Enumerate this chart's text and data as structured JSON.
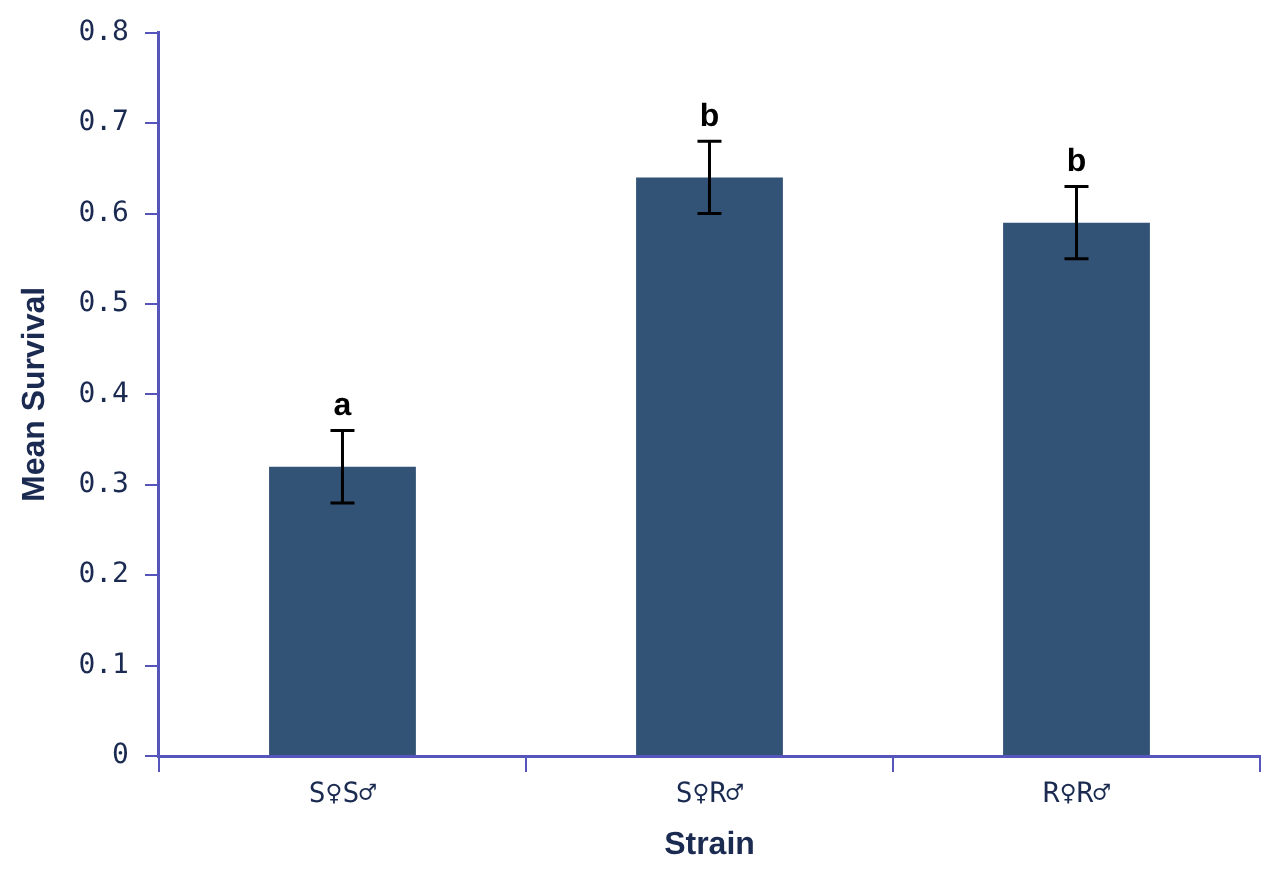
{
  "chart_data": {
    "type": "bar",
    "xlabel": "Strain",
    "ylabel": "Mean Survival",
    "categories": [
      "S♀S♂",
      "S♀R♂",
      "R♀R♂"
    ],
    "values": [
      0.32,
      0.64,
      0.59
    ],
    "errors": [
      0.04,
      0.04,
      0.04
    ],
    "color": "#325276",
    "ylim": [
      0,
      0.8
    ],
    "yticks": [
      0,
      0.1,
      0.2,
      0.3,
      0.4,
      0.5,
      0.6,
      0.7,
      0.8
    ],
    "grid": false,
    "legend": false,
    "annotations": [
      {
        "text": "a",
        "x": "S♀S♂",
        "y": 0.36
      },
      {
        "text": "b",
        "x": "S♀R♂",
        "y": 0.68
      },
      {
        "text": "b",
        "x": "R♀R♂",
        "y": 0.63
      }
    ]
  }
}
